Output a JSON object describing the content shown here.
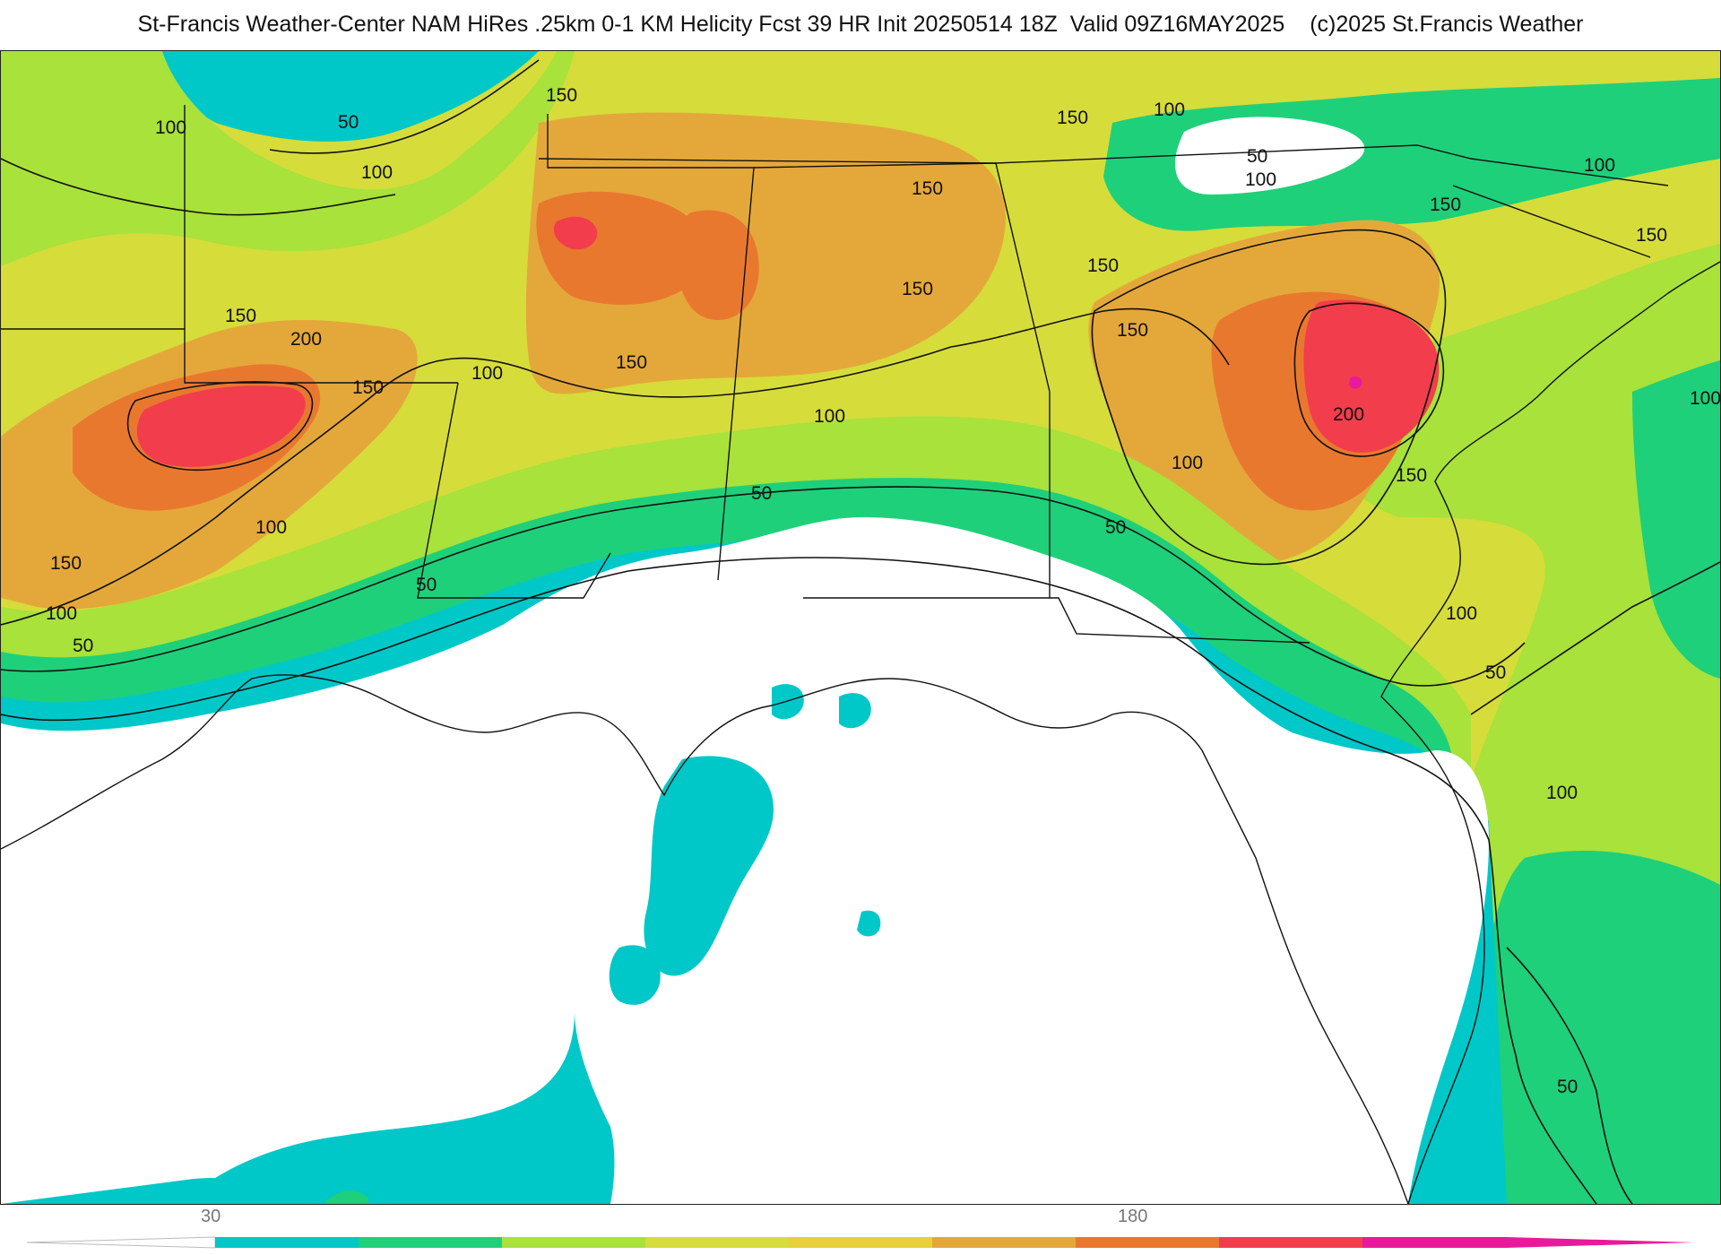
{
  "header": {
    "title": "St-Francis Weather-Center NAM HiRes .25km 0-1 KM Helicity Fcst 39 HR Init 20250514 18Z  Valid 09Z16MAY2025",
    "copyright": "(c)2025 St.Francis Weather"
  },
  "map": {
    "variable": "0-1 KM Helicity",
    "region": "Southeastern United States and Gulf of Mexico",
    "contour_levels": [
      "50",
      "100",
      "150",
      "200"
    ],
    "colors": {
      "band_30_50": "#00c8c8",
      "band_50_75": "#1ed07a",
      "band_75_100": "#a8e23a",
      "band_100_125": "#d6dc3a",
      "band_125_150": "#e9cf3a",
      "band_150_175": "#e4a83a",
      "band_175_200": "#e9782f",
      "band_200_plus": "#f23d4c",
      "max": "#e8199a",
      "below_threshold": "#ffffff",
      "borders": "#111111"
    }
  },
  "legend": {
    "tick_labels": [
      "30",
      "180"
    ],
    "colors": [
      "#00c8c8",
      "#1ed07a",
      "#a8e23a",
      "#d6dc3a",
      "#e9cf3a",
      "#e4a83a",
      "#e9782f",
      "#f23d4c",
      "#e8199a"
    ]
  }
}
